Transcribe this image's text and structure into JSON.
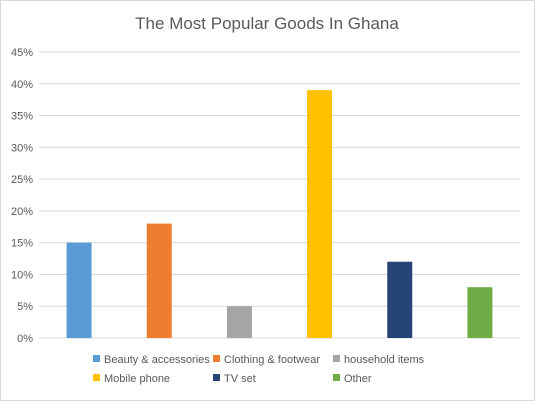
{
  "chart_data": {
    "type": "bar",
    "title": "The Most Popular Goods In Ghana",
    "xlabel": "",
    "ylabel": "",
    "ylim": [
      0,
      45
    ],
    "y_ticks": [
      "0%",
      "5%",
      "10%",
      "15%",
      "20%",
      "25%",
      "30%",
      "35%",
      "40%",
      "45%"
    ],
    "y_tick_values": [
      0,
      5,
      10,
      15,
      20,
      25,
      30,
      35,
      40,
      45
    ],
    "grid": true,
    "legend_position": "bottom",
    "series": [
      {
        "name": "Beauty & accessories",
        "value": 15,
        "color": "#5b9bd5"
      },
      {
        "name": "Clothing & footwear",
        "value": 18,
        "color": "#ed7d31"
      },
      {
        "name": "household items",
        "value": 5,
        "color": "#a5a5a5"
      },
      {
        "name": "Mobile phone",
        "value": 39,
        "color": "#ffc000"
      },
      {
        "name": "TV set",
        "value": 12,
        "color": "#264478"
      },
      {
        "name": "Other",
        "value": 8,
        "color": "#70ad47"
      }
    ]
  }
}
